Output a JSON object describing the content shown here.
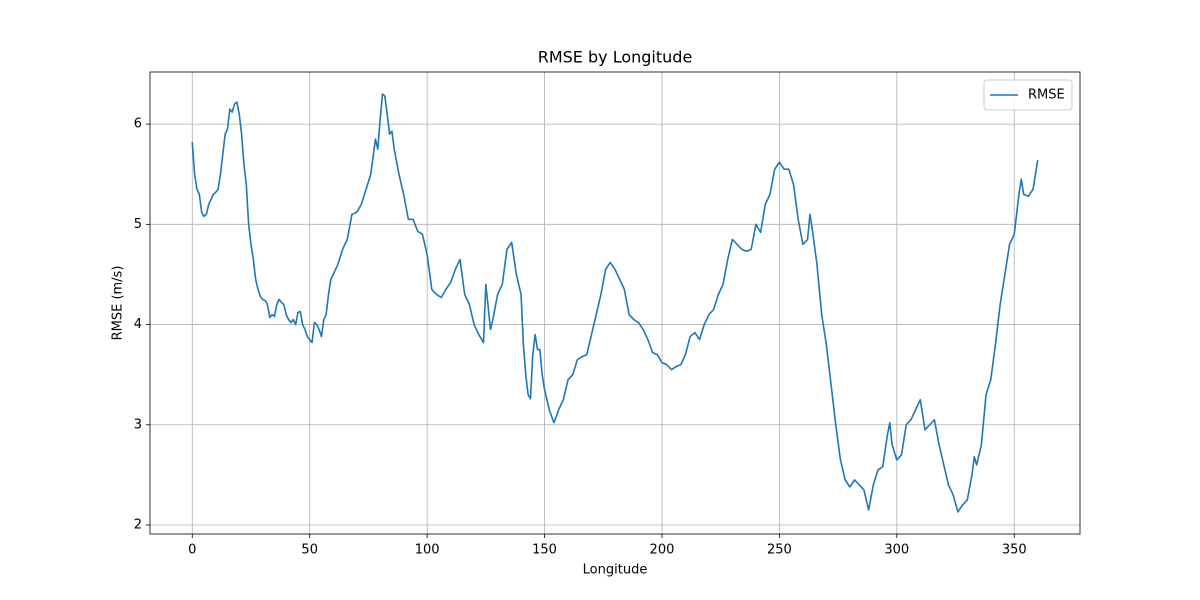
{
  "chart_data": {
    "type": "line",
    "title": "RMSE by Longitude",
    "xlabel": "Longitude",
    "ylabel": "RMSE (m/s)",
    "x": [
      0,
      1,
      2,
      3,
      4,
      5,
      6,
      7,
      8,
      9,
      10,
      11,
      12,
      13,
      14,
      15,
      16,
      17,
      18,
      19,
      20,
      21,
      22,
      23,
      24,
      25,
      26,
      27,
      28,
      29,
      30,
      31,
      32,
      33,
      34,
      35,
      36,
      37,
      38,
      39,
      40,
      41,
      42,
      43,
      44,
      45,
      46,
      47,
      48,
      49,
      50,
      51,
      52,
      53,
      54,
      55,
      56,
      57,
      58,
      59,
      60,
      62,
      64,
      66,
      68,
      70,
      72,
      74,
      76,
      78,
      79,
      80,
      81,
      82,
      83,
      84,
      85,
      86,
      88,
      90,
      92,
      94,
      96,
      98,
      100,
      102,
      104,
      106,
      108,
      110,
      112,
      114,
      116,
      118,
      120,
      122,
      124,
      125,
      127,
      128,
      130,
      132,
      134,
      136,
      138,
      140,
      141,
      142,
      143,
      144,
      145,
      146,
      147,
      148,
      149,
      150,
      152,
      154,
      156,
      158,
      160,
      162,
      164,
      166,
      168,
      170,
      172,
      174,
      176,
      178,
      180,
      182,
      184,
      186,
      188,
      190,
      192,
      194,
      196,
      198,
      200,
      202,
      204,
      206,
      208,
      210,
      212,
      214,
      216,
      218,
      220,
      222,
      224,
      226,
      228,
      230,
      232,
      234,
      236,
      238,
      240,
      242,
      244,
      246,
      248,
      250,
      252,
      254,
      256,
      258,
      260,
      262,
      263,
      264,
      266,
      268,
      270,
      272,
      274,
      276,
      278,
      280,
      282,
      284,
      286,
      288,
      290,
      292,
      294,
      296,
      297,
      298,
      300,
      302,
      304,
      306,
      308,
      310,
      312,
      314,
      316,
      318,
      320,
      322,
      324,
      326,
      328,
      330,
      332,
      333,
      334,
      336,
      338,
      340,
      342,
      344,
      346,
      348,
      350,
      352,
      353,
      354,
      356,
      358,
      360
    ],
    "series": [
      {
        "name": "RMSE",
        "color": "#1f77b4",
        "values": [
          5.82,
          5.5,
          5.35,
          5.3,
          5.12,
          5.08,
          5.1,
          5.2,
          5.25,
          5.3,
          5.32,
          5.35,
          5.5,
          5.7,
          5.9,
          5.95,
          6.15,
          6.12,
          6.2,
          6.22,
          6.1,
          5.9,
          5.6,
          5.4,
          5.0,
          4.8,
          4.65,
          4.45,
          4.35,
          4.28,
          4.25,
          4.24,
          4.2,
          4.07,
          4.1,
          4.08,
          4.2,
          4.25,
          4.22,
          4.2,
          4.1,
          4.05,
          4.02,
          4.05,
          4.0,
          4.12,
          4.13,
          4.0,
          3.95,
          3.88,
          3.85,
          3.82,
          4.02,
          4.0,
          3.95,
          3.88,
          4.05,
          4.1,
          4.3,
          4.45,
          4.5,
          4.6,
          4.75,
          4.85,
          5.1,
          5.12,
          5.2,
          5.35,
          5.5,
          5.85,
          5.75,
          6.05,
          6.3,
          6.28,
          6.1,
          5.9,
          5.93,
          5.75,
          5.5,
          5.3,
          5.05,
          5.05,
          4.93,
          4.9,
          4.7,
          4.35,
          4.3,
          4.27,
          4.35,
          4.42,
          4.55,
          4.65,
          4.3,
          4.2,
          4.0,
          3.9,
          3.82,
          4.4,
          3.95,
          4.05,
          4.3,
          4.4,
          4.75,
          4.82,
          4.5,
          4.3,
          3.8,
          3.5,
          3.3,
          3.26,
          3.7,
          3.9,
          3.75,
          3.75,
          3.5,
          3.35,
          3.15,
          3.02,
          3.15,
          3.25,
          3.45,
          3.5,
          3.65,
          3.68,
          3.7,
          3.9,
          4.1,
          4.3,
          4.55,
          4.62,
          4.55,
          4.45,
          4.35,
          4.1,
          4.05,
          4.02,
          3.95,
          3.85,
          3.72,
          3.7,
          3.62,
          3.6,
          3.55,
          3.58,
          3.6,
          3.7,
          3.88,
          3.92,
          3.85,
          4.0,
          4.1,
          4.15,
          4.3,
          4.4,
          4.65,
          4.85,
          4.8,
          4.75,
          4.73,
          4.75,
          5.0,
          4.92,
          5.2,
          5.3,
          5.55,
          5.62,
          5.55,
          5.55,
          5.4,
          5.05,
          4.8,
          4.85,
          5.1,
          4.95,
          4.6,
          4.1,
          3.8,
          3.4,
          3.0,
          2.65,
          2.45,
          2.38,
          2.45,
          2.4,
          2.35,
          2.15,
          2.4,
          2.55,
          2.58,
          2.9,
          3.02,
          2.8,
          2.65,
          2.7,
          3.0,
          3.05,
          3.15,
          3.25,
          2.95,
          3.0,
          3.05,
          2.8,
          2.6,
          2.4,
          2.3,
          2.13,
          2.2,
          2.25,
          2.5,
          2.68,
          2.6,
          2.8,
          3.3,
          3.45,
          3.8,
          4.2,
          4.5,
          4.8,
          4.9,
          5.3,
          5.45,
          5.3,
          5.28,
          5.35,
          5.64
        ]
      }
    ],
    "xlim": [
      -18,
      378
    ],
    "ylim": [
      1.91,
      6.52
    ],
    "xticks": [
      0,
      50,
      100,
      150,
      200,
      250,
      300,
      350
    ],
    "yticks": [
      2,
      3,
      4,
      5,
      6
    ],
    "grid": true,
    "legend": "upper right"
  }
}
